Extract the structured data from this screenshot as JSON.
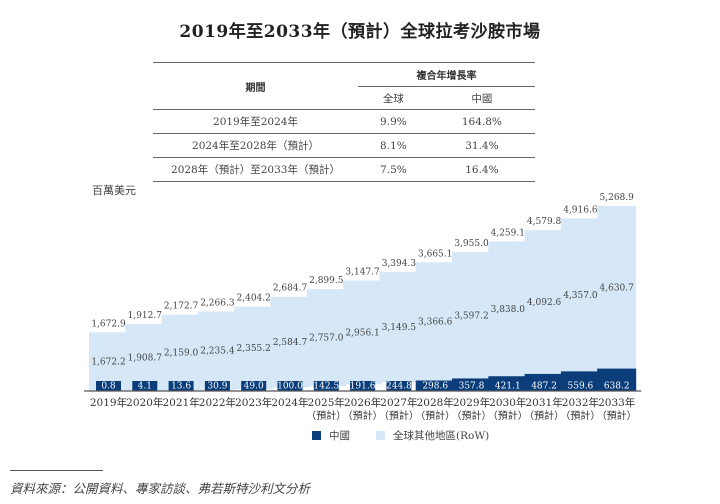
{
  "title": "2019年至2033年（預計）全球拉考沙胺市場",
  "cagr_table": {
    "header_period": "期間",
    "header_cagr": "複合年增長率",
    "sub_headers": [
      "全球",
      "中國"
    ],
    "rows": [
      {
        "period": "2019年至2024年",
        "global": "9.9%",
        "china": "164.8%"
      },
      {
        "period": "2024年至2028年（預計）",
        "global": "8.1%",
        "china": "31.4%"
      },
      {
        "period": "2028年（預計）至2033年（預計）",
        "global": "7.5%",
        "china": "16.4%"
      }
    ]
  },
  "unit_label": "百萬美元",
  "source": "資料來源：公開資料、專家訪談、弗若斯特沙利文分析",
  "colors": {
    "china": "#0b3d7a",
    "row": "#d6e8f7",
    "axis": "#555555"
  },
  "chart_data": {
    "type": "bar",
    "stacked": true,
    "title": "2019年至2033年（預計）全球拉考沙胺市場",
    "ylabel": "百萬美元",
    "categories": [
      "2019年",
      "2020年",
      "2021年",
      "2022年",
      "2023年",
      "2024年",
      "2025年",
      "2026年",
      "2027年",
      "2028年",
      "2029年",
      "2030年",
      "2031年",
      "2032年",
      "2033年"
    ],
    "category_sublabels": [
      "",
      "",
      "",
      "",
      "",
      "",
      "（預計）",
      "（預計）",
      "（預計）",
      "（預計）",
      "（預計）",
      "（預計）",
      "（預計）",
      "（預計）",
      "（預計）"
    ],
    "series": [
      {
        "name": "中國",
        "values": [
          0.8,
          4.1,
          13.6,
          30.9,
          49.0,
          100.0,
          142.5,
          191.6,
          244.8,
          298.6,
          357.8,
          421.1,
          487.2,
          559.6,
          638.2
        ]
      },
      {
        "name": "全球其他地區(RoW)",
        "values": [
          1672.2,
          1908.7,
          2159.0,
          2235.4,
          2355.2,
          2584.7,
          2757.0,
          2956.1,
          3149.5,
          3366.6,
          3597.2,
          3838.0,
          4092.6,
          4357.0,
          4630.7
        ]
      }
    ],
    "totals": [
      1672.9,
      1912.7,
      2172.7,
      2266.3,
      2404.2,
      2684.7,
      2899.5,
      3147.7,
      3394.3,
      3665.1,
      3955.0,
      4259.1,
      4579.8,
      4916.6,
      5268.9
    ],
    "labels": {
      "china": [
        "0.8",
        "4.1",
        "13.6",
        "30.9",
        "49.0",
        "100.0",
        "142.5",
        "191.6",
        "244.8",
        "298.6",
        "357.8",
        "421.1",
        "487.2",
        "559.6",
        "638.2"
      ],
      "row": [
        "1,672.2",
        "1,908.7",
        "2,159.0",
        "2,235.4",
        "2,355.2",
        "2,584.7",
        "2,757.0",
        "2,956.1",
        "3,149.5",
        "3,366.6",
        "3,597.2",
        "3,838.0",
        "4,092.6",
        "4,357.0",
        "4,630.7"
      ],
      "totals": [
        "1,672.9",
        "1,912.7",
        "2,172.7",
        "2,266.3",
        "2,404.2",
        "2,684.7",
        "2,899.5",
        "3,147.7",
        "3,394.3",
        "3,665.1",
        "3,955.0",
        "4,259.1",
        "4,579.8",
        "4,916.6",
        "5,268.9"
      ]
    },
    "ylim": [
      0,
      5300
    ],
    "grid": false,
    "legend": {
      "position": "bottom",
      "entries": [
        "中國",
        "全球其他地區(RoW)"
      ]
    }
  }
}
